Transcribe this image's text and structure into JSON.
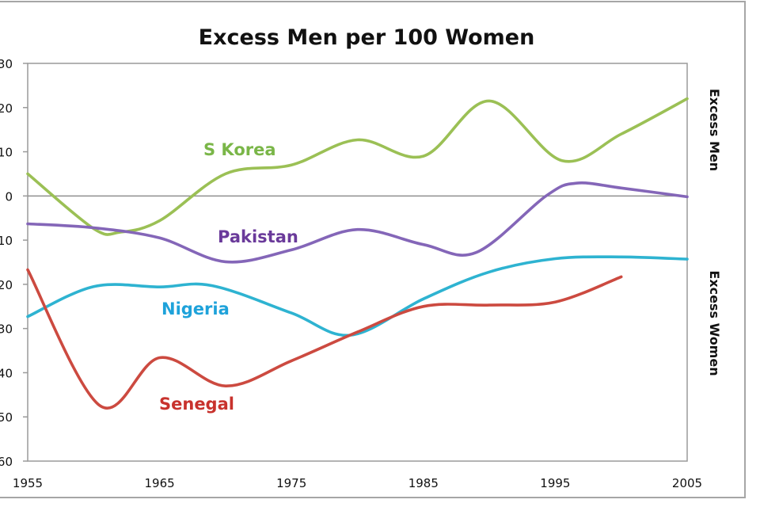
{
  "chart_data": {
    "type": "line",
    "title": "Excess Men per 100 Women",
    "xlabel": "",
    "ylabel": "",
    "right_labels": {
      "upper": "Excess Men",
      "lower": "Excess Women"
    },
    "xlim": [
      1955,
      2005
    ],
    "ylim": [
      -60,
      30
    ],
    "x_ticks": [
      1955,
      1965,
      1975,
      1985,
      1995,
      2005
    ],
    "y_ticks": [
      30,
      20,
      10,
      0,
      -10,
      -20,
      -30,
      -40,
      -50,
      -60
    ],
    "y_tick_labels": [
      "30",
      "20",
      "10",
      "0",
      "10",
      "20",
      "30",
      "40",
      "50",
      "60"
    ],
    "zero_line": true,
    "grid": false,
    "legend": "inline-labels",
    "smooth": true,
    "series": [
      {
        "name": "S Korea",
        "line_color": "#9bc055",
        "label_color": "#7ab648",
        "x": [
          1955,
          1960,
          1962,
          1965,
          1970,
          1975,
          1980,
          1985,
          1990,
          1995.5,
          2000,
          2005
        ],
        "values": [
          5,
          -7.4,
          -8.2,
          -5.6,
          5,
          7,
          12.7,
          9,
          21.5,
          8,
          14,
          22
        ]
      },
      {
        "name": "Pakistan",
        "line_color": "#8466b8",
        "label_color": "#6a3a9a",
        "x": [
          1955,
          1960,
          1965,
          1970,
          1975,
          1980,
          1985,
          1989,
          1994.3,
          1996.6,
          2000,
          2005
        ],
        "values": [
          -6.3,
          -7.2,
          -9.5,
          -14.9,
          -12.2,
          -7.6,
          -11,
          -12.8,
          0,
          2.9,
          1.8,
          -0.2
        ]
      },
      {
        "name": "Nigeria",
        "line_color": "#2eb3d1",
        "label_color": "#1ea2da",
        "x": [
          1955,
          1960,
          1965,
          1969,
          1975,
          1979.5,
          1985,
          1990,
          1995,
          2000,
          2005
        ],
        "values": [
          -27.3,
          -20.5,
          -20.6,
          -20.3,
          -26.5,
          -31.5,
          -23.3,
          -17.2,
          -14.2,
          -13.8,
          -14.3
        ]
      },
      {
        "name": "Senegal",
        "line_color": "#cc4a40",
        "label_color": "#c8322d",
        "x": [
          1955,
          1960.5,
          1965,
          1970,
          1975,
          1980,
          1985,
          1990,
          1995,
          2000
        ],
        "values": [
          -16.7,
          -47.5,
          -36.6,
          -43,
          -37.3,
          -30.8,
          -25,
          -24.7,
          -24,
          -18.3
        ]
      }
    ]
  }
}
